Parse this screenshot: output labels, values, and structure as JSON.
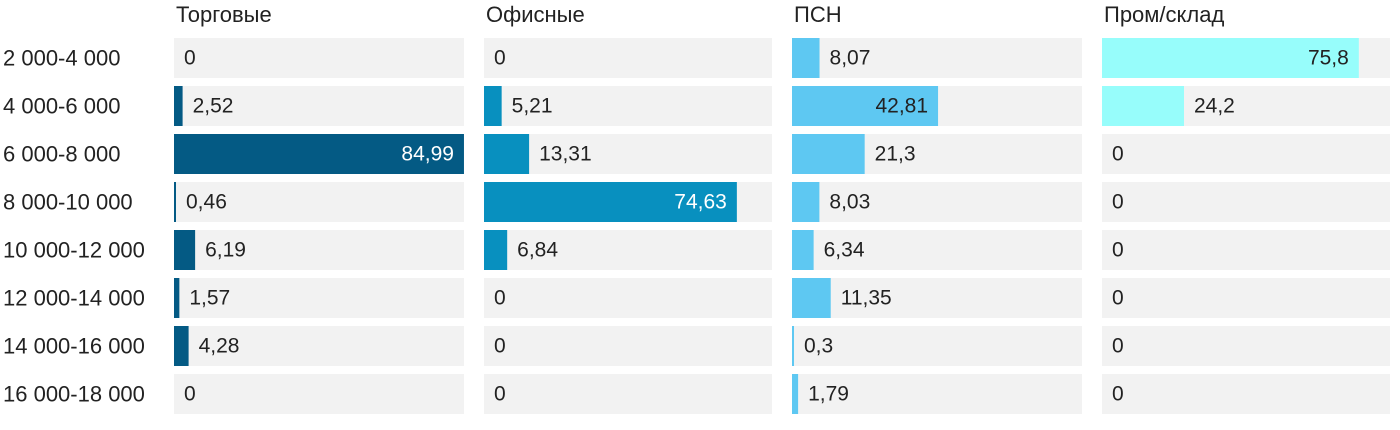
{
  "chart_data": {
    "type": "bar",
    "orientation": "horizontal",
    "categories": [
      "2 000-4 000",
      "4 000-6 000",
      "6 000-8 000",
      "8 000-10 000",
      "10 000-12 000",
      "12 000-14 000",
      "14 000-16 000",
      "16 000-18 000"
    ],
    "series": [
      {
        "name": "Торговые",
        "color": "#045a84",
        "values": [
          "0",
          "2,52",
          "84,99",
          "0,46",
          "6,19",
          "1,57",
          "4,28",
          "0"
        ]
      },
      {
        "name": "Офисные",
        "color": "#0890bf",
        "values": [
          "0",
          "5,21",
          "13,31",
          "74,63",
          "6,84",
          "0",
          "0",
          "0"
        ]
      },
      {
        "name": "ПСН",
        "color": "#5ec8f2",
        "values": [
          "8,07",
          "42,81",
          "21,3",
          "8,03",
          "6,34",
          "11,35",
          "0,3",
          "1,79"
        ]
      },
      {
        "name": "Пром/склад",
        "color": "#97fdfb",
        "values": [
          "75,8",
          "24,2",
          "0",
          "0",
          "0",
          "0",
          "0",
          "0"
        ]
      }
    ],
    "xlim": [
      0,
      85
    ],
    "track_color": "#f2f2f2",
    "grid": false,
    "legend": "none"
  }
}
